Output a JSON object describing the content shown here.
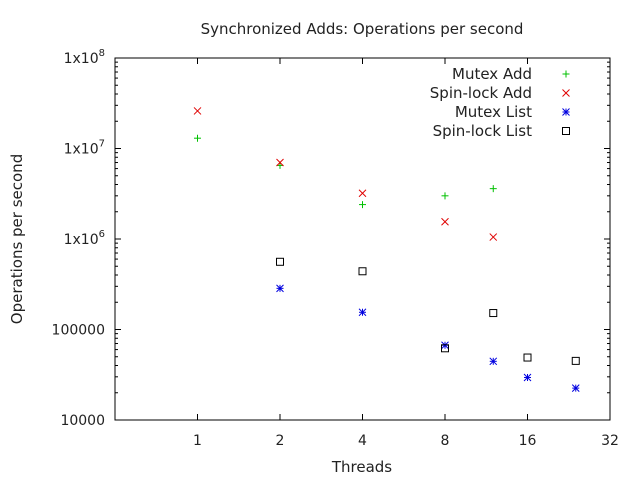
{
  "chart_data": {
    "type": "scatter",
    "title": "Synchronized Adds: Operations per second",
    "xlabel": "Threads",
    "ylabel": "Operations per second",
    "x_scale": "log2",
    "y_scale": "log10",
    "xlim": [
      0.5,
      32
    ],
    "ylim": [
      10000,
      100000000
    ],
    "x_ticks": [
      {
        "value": 1,
        "label": "1"
      },
      {
        "value": 2,
        "label": "2"
      },
      {
        "value": 4,
        "label": "4"
      },
      {
        "value": 8,
        "label": "8"
      },
      {
        "value": 16,
        "label": "16"
      },
      {
        "value": 32,
        "label": "32"
      }
    ],
    "y_ticks": [
      {
        "value": 10000,
        "label": "10000",
        "sup": ""
      },
      {
        "value": 100000,
        "label": "100000",
        "sup": ""
      },
      {
        "value": 1000000,
        "label": "1x10",
        "sup": "6"
      },
      {
        "value": 10000000,
        "label": "1x10",
        "sup": "7"
      },
      {
        "value": 100000000,
        "label": "1x10",
        "sup": "8"
      }
    ],
    "legend_position": "top-right",
    "grid": false,
    "series": [
      {
        "name": "Mutex Add",
        "marker": "plus",
        "color": "#00c000",
        "points": [
          [
            1,
            13000000
          ],
          [
            2,
            6500000
          ],
          [
            4,
            2400000
          ],
          [
            8,
            3000000
          ],
          [
            12,
            3600000
          ]
        ]
      },
      {
        "name": "Spin-lock Add",
        "marker": "cross",
        "color": "#e00000",
        "points": [
          [
            1,
            26000000
          ],
          [
            2,
            7000000
          ],
          [
            4,
            3200000
          ],
          [
            8,
            1550000
          ],
          [
            12,
            1050000
          ]
        ]
      },
      {
        "name": "Mutex List",
        "marker": "star",
        "color": "#0000e0",
        "points": [
          [
            2,
            285000
          ],
          [
            4,
            155000
          ],
          [
            8,
            67000
          ],
          [
            12,
            44500
          ],
          [
            16,
            29500
          ],
          [
            24,
            22500
          ]
        ]
      },
      {
        "name": "Spin-lock List",
        "marker": "square",
        "color": "#000000",
        "points": [
          [
            2,
            560000
          ],
          [
            4,
            440000
          ],
          [
            8,
            62000
          ],
          [
            12,
            152000
          ],
          [
            16,
            49000
          ],
          [
            24,
            45000
          ]
        ]
      }
    ]
  }
}
